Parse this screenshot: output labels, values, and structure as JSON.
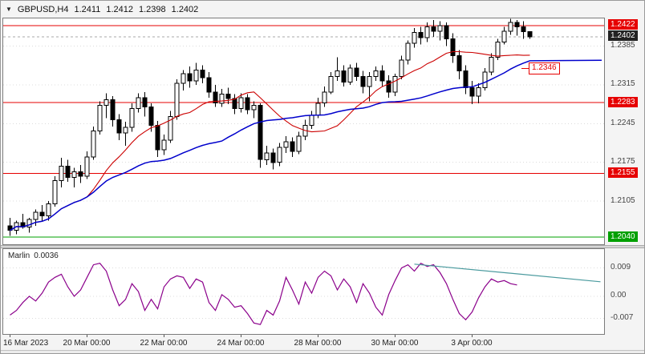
{
  "header": {
    "symbol": "GBPUSD,H4",
    "open": "1.2411",
    "high": "1.2412",
    "low": "1.2398",
    "close": "1.2402"
  },
  "colors": {
    "red_line": "#e60000",
    "green_line": "#00a000",
    "dark_badge": "#222222",
    "axis_text": "#444444",
    "grid": "#dcdcdc",
    "candle": "#000000",
    "ma_fast": "#cc0000",
    "ma_slow": "#0000cc",
    "indicator_line": "#8b008b",
    "trend_line": "#4a9a9e",
    "bid_line": "#aaaaaa"
  },
  "chart_data": {
    "type": "candlestick",
    "symbol": "GBPUSD",
    "timeframe": "H4",
    "y_range_main": [
      1.2027,
      1.2435
    ],
    "bid": 1.2402,
    "candles": [
      [
        1.206,
        1.2075,
        1.2042,
        1.2052
      ],
      [
        1.2052,
        1.207,
        1.2045,
        1.2066
      ],
      [
        1.2066,
        1.2082,
        1.2055,
        1.2058
      ],
      [
        1.2058,
        1.2075,
        1.2048,
        1.2072
      ],
      [
        1.2072,
        1.209,
        1.206,
        1.2085
      ],
      [
        1.2085,
        1.2098,
        1.207,
        1.2078
      ],
      [
        1.2078,
        1.2105,
        1.207,
        1.21
      ],
      [
        1.21,
        1.215,
        1.2095,
        1.2142
      ],
      [
        1.2142,
        1.2183,
        1.213,
        1.2168
      ],
      [
        1.2168,
        1.218,
        1.214,
        1.2148
      ],
      [
        1.2148,
        1.2165,
        1.213,
        1.2158
      ],
      [
        1.2158,
        1.217,
        1.2138,
        1.215
      ],
      [
        1.215,
        1.2195,
        1.2145,
        1.2185
      ],
      [
        1.2185,
        1.224,
        1.218,
        1.2232
      ],
      [
        1.2232,
        1.2285,
        1.2225,
        1.2278
      ],
      [
        1.2278,
        1.23,
        1.2255,
        1.2288
      ],
      [
        1.2288,
        1.2295,
        1.224,
        1.2252
      ],
      [
        1.2252,
        1.2262,
        1.2215,
        1.2228
      ],
      [
        1.2228,
        1.2248,
        1.2205,
        1.2238
      ],
      [
        1.2238,
        1.2282,
        1.223,
        1.2272
      ],
      [
        1.2272,
        1.23,
        1.2265,
        1.2292
      ],
      [
        1.2292,
        1.2302,
        1.2258,
        1.2275
      ],
      [
        1.2275,
        1.2282,
        1.223,
        1.2242
      ],
      [
        1.2242,
        1.225,
        1.2185,
        1.2198
      ],
      [
        1.2198,
        1.2225,
        1.2188,
        1.2215
      ],
      [
        1.2215,
        1.2268,
        1.221,
        1.2258
      ],
      [
        1.2258,
        1.2325,
        1.2252,
        1.2318
      ],
      [
        1.2318,
        1.2342,
        1.2305,
        1.2335
      ],
      [
        1.2335,
        1.2348,
        1.231,
        1.2322
      ],
      [
        1.2322,
        1.2355,
        1.2315,
        1.2342
      ],
      [
        1.2342,
        1.235,
        1.2318,
        1.2328
      ],
      [
        1.2328,
        1.2338,
        1.2292,
        1.2302
      ],
      [
        1.2302,
        1.2315,
        1.2275,
        1.2282
      ],
      [
        1.2282,
        1.2308,
        1.2275,
        1.2298
      ],
      [
        1.2298,
        1.231,
        1.228,
        1.229
      ],
      [
        1.229,
        1.2298,
        1.2262,
        1.2272
      ],
      [
        1.2272,
        1.23,
        1.2265,
        1.2292
      ],
      [
        1.2292,
        1.2298,
        1.2262,
        1.227
      ],
      [
        1.227,
        1.2285,
        1.2255,
        1.2278
      ],
      [
        1.2278,
        1.2282,
        1.2165,
        1.218
      ],
      [
        1.218,
        1.2205,
        1.217,
        1.2192
      ],
      [
        1.2192,
        1.22,
        1.2162,
        1.2175
      ],
      [
        1.2175,
        1.221,
        1.2168,
        1.2202
      ],
      [
        1.2202,
        1.2222,
        1.2192,
        1.2212
      ],
      [
        1.2212,
        1.222,
        1.2185,
        1.2195
      ],
      [
        1.2195,
        1.223,
        1.219,
        1.2222
      ],
      [
        1.2222,
        1.2252,
        1.2215,
        1.2242
      ],
      [
        1.2242,
        1.2268,
        1.2235,
        1.226
      ],
      [
        1.226,
        1.2292,
        1.2255,
        1.2282
      ],
      [
        1.2282,
        1.2312,
        1.2275,
        1.2302
      ],
      [
        1.2302,
        1.2338,
        1.2298,
        1.233
      ],
      [
        1.233,
        1.2365,
        1.2322,
        1.234
      ],
      [
        1.234,
        1.235,
        1.2312,
        1.232
      ],
      [
        1.232,
        1.2352,
        1.2315,
        1.2345
      ],
      [
        1.2345,
        1.2355,
        1.2322,
        1.233
      ],
      [
        1.233,
        1.234,
        1.23,
        1.2312
      ],
      [
        1.2312,
        1.2338,
        1.2285,
        1.233
      ],
      [
        1.233,
        1.2348,
        1.2322,
        1.234
      ],
      [
        1.234,
        1.235,
        1.2312,
        1.2322
      ],
      [
        1.2322,
        1.2332,
        1.2292,
        1.2302
      ],
      [
        1.2302,
        1.2335,
        1.2295,
        1.233
      ],
      [
        1.233,
        1.2368,
        1.2325,
        1.236
      ],
      [
        1.236,
        1.2395,
        1.2352,
        1.239
      ],
      [
        1.239,
        1.2418,
        1.2382,
        1.241
      ],
      [
        1.241,
        1.242,
        1.2388,
        1.24
      ],
      [
        1.24,
        1.2428,
        1.2392,
        1.242
      ],
      [
        1.242,
        1.2432,
        1.2402,
        1.2412
      ],
      [
        1.2412,
        1.243,
        1.2395,
        1.2422
      ],
      [
        1.2422,
        1.2428,
        1.2385,
        1.2398
      ],
      [
        1.2398,
        1.2408,
        1.2355,
        1.2368
      ],
      [
        1.2368,
        1.2378,
        1.2325,
        1.234
      ],
      [
        1.234,
        1.235,
        1.2298,
        1.231
      ],
      [
        1.231,
        1.2322,
        1.228,
        1.2295
      ],
      [
        1.2295,
        1.2318,
        1.2282,
        1.231
      ],
      [
        1.231,
        1.2345,
        1.2305,
        1.2338
      ],
      [
        1.2338,
        1.2372,
        1.2332,
        1.2365
      ],
      [
        1.2365,
        1.2398,
        1.236,
        1.2392
      ],
      [
        1.2392,
        1.242,
        1.2388,
        1.2412
      ],
      [
        1.2412,
        1.2434,
        1.2405,
        1.2428
      ],
      [
        1.2428,
        1.2432,
        1.2404,
        1.242
      ],
      [
        1.242,
        1.243,
        1.2398,
        1.2411
      ],
      [
        1.2411,
        1.2412,
        1.2398,
        1.2402
      ]
    ],
    "ma_fast_period": 13,
    "ma_slow_period": 34,
    "h_lines": [
      {
        "price": 1.2422,
        "color": "red"
      },
      {
        "price": 1.2283,
        "color": "red"
      },
      {
        "price": 1.2155,
        "color": "red"
      },
      {
        "price": 1.204,
        "color": "green"
      }
    ],
    "axis_main": [
      {
        "text": "1.2422",
        "price": 1.2422,
        "type": "red"
      },
      {
        "text": "1.2402",
        "price": 1.2402,
        "type": "dark"
      },
      {
        "text": "1.2385",
        "price": 1.2385,
        "type": "plain"
      },
      {
        "text": "1.2315",
        "price": 1.2315,
        "type": "plain"
      },
      {
        "text": "1.2283",
        "price": 1.2283,
        "type": "red"
      },
      {
        "text": "1.2245",
        "price": 1.2245,
        "type": "plain"
      },
      {
        "text": "1.2175",
        "price": 1.2175,
        "type": "plain"
      },
      {
        "text": "1.2155",
        "price": 1.2155,
        "type": "red"
      },
      {
        "text": "1.2105",
        "price": 1.2105,
        "type": "plain"
      },
      {
        "text": "1.2040",
        "price": 1.204,
        "type": "green"
      }
    ],
    "callout": {
      "label": "1.2346",
      "price": 1.2346
    },
    "x_ticks": [
      {
        "i": 0,
        "label": "16 Mar 2023",
        "align": "left"
      },
      {
        "i": 12,
        "label": "20 Mar 00:00"
      },
      {
        "i": 24,
        "label": "22 Mar 00:00"
      },
      {
        "i": 36,
        "label": "24 Mar 00:00"
      },
      {
        "i": 48,
        "label": "28 Mar 00:00"
      },
      {
        "i": 60,
        "label": "30 Mar 00:00"
      },
      {
        "i": 72,
        "label": "3 Apr 00:00"
      }
    ],
    "indicator": {
      "name": "Marlin",
      "value": "0.0036",
      "y_range": [
        -0.012,
        0.015
      ],
      "grid_values": [
        0.009,
        0,
        -0.007
      ],
      "axis_labels": [
        {
          "text": "0.009",
          "value": 0.009
        },
        {
          "text": "0.00",
          "value": 0
        },
        {
          "text": "-0.007",
          "value": -0.007
        }
      ],
      "values": [
        -0.006,
        -0.0045,
        -0.002,
        0.0,
        -0.0015,
        0.001,
        0.0045,
        0.006,
        0.007,
        0.003,
        0.0,
        0.002,
        0.006,
        0.01,
        0.0105,
        0.008,
        0.002,
        -0.003,
        -0.001,
        0.004,
        0.0015,
        -0.0045,
        -0.001,
        -0.004,
        0.003,
        0.0055,
        0.0065,
        0.006,
        0.0025,
        0.0055,
        0.0045,
        -0.002,
        -0.0045,
        0.0005,
        -0.001,
        -0.0035,
        -0.003,
        -0.0055,
        -0.0085,
        -0.009,
        -0.0045,
        -0.006,
        -0.0015,
        0.006,
        0.002,
        -0.0025,
        0.0045,
        0.001,
        0.006,
        0.008,
        0.0065,
        0.002,
        0.0055,
        0.003,
        -0.002,
        0.004,
        0.001,
        -0.0035,
        -0.006,
        0.0005,
        0.005,
        0.009,
        0.01,
        0.008,
        0.0105,
        0.0095,
        0.01,
        0.0075,
        0.004,
        -0.001,
        -0.0055,
        -0.0075,
        -0.005,
        -0.0005,
        0.003,
        0.0055,
        0.0045,
        0.005,
        0.004,
        0.0036
      ],
      "trend_line": {
        "i1": 63,
        "v1": 0.0102,
        "i2": 92,
        "v2": 0.0046
      }
    }
  }
}
